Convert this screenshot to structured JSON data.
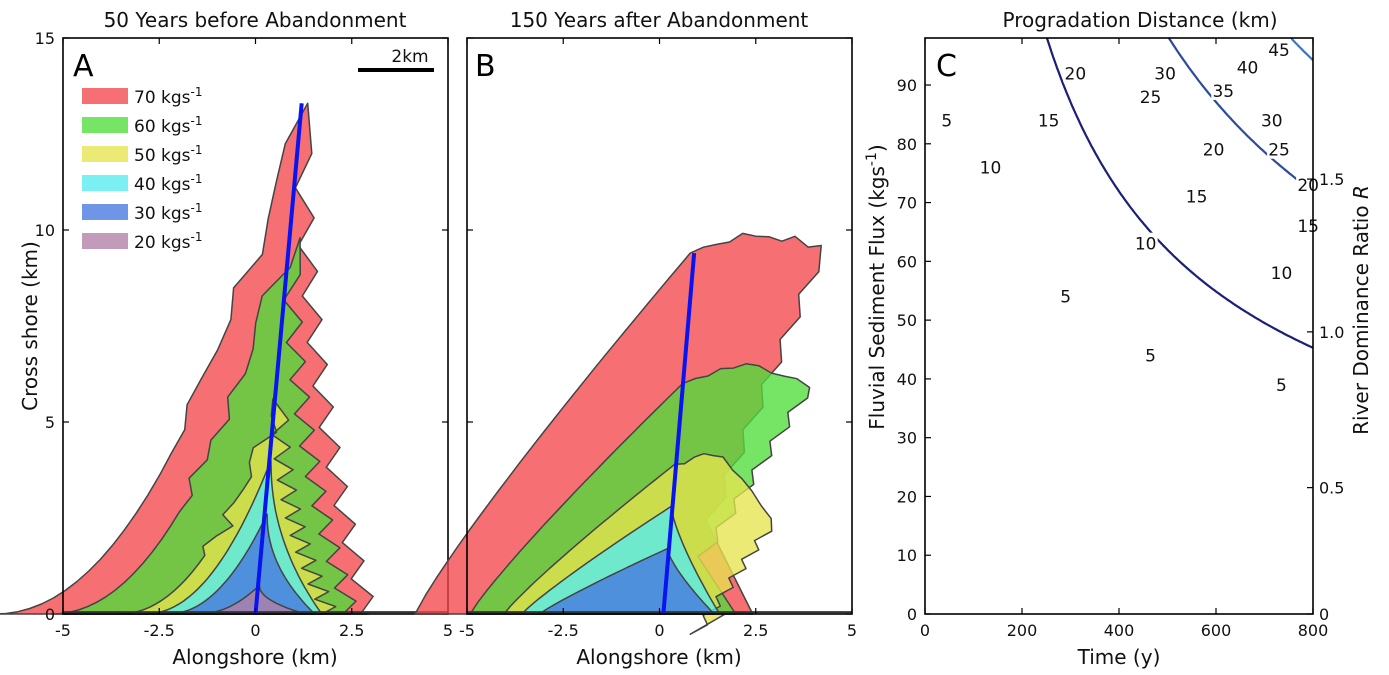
{
  "chart_data": [
    {
      "type": "area",
      "panel": "A",
      "title": "50 Years before Abandonment",
      "xlabel": "Alongshore (km)",
      "ylabel": "Cross shore (km)",
      "xlim": [
        -5,
        5
      ],
      "ylim": [
        0,
        15
      ],
      "x_ticks": [
        "-5",
        "-2.5",
        "0",
        "2.5",
        "5"
      ],
      "y_ticks": [
        "0",
        "5",
        "10",
        "15"
      ],
      "scale_bar": "2km",
      "legend": [
        {
          "label": "70 kgs",
          "sup": "-1",
          "color": "#f4474a"
        },
        {
          "label": "60 kgs",
          "sup": "-1",
          "color": "#4fdc3a"
        },
        {
          "label": "50 kgs",
          "sup": "-1",
          "color": "#e6e44e"
        },
        {
          "label": "40 kgs",
          "sup": "-1",
          "color": "#54ecf0"
        },
        {
          "label": "30 kgs",
          "sup": "-1",
          "color": "#4677e0"
        },
        {
          "label": "20 kgs",
          "sup": "-1",
          "color": "#b27fa6"
        }
      ],
      "series": [
        {
          "flux": 70,
          "tip": [
            1.2,
            13.3
          ],
          "color": "#f4474a"
        },
        {
          "flux": 60,
          "tip": [
            0.9,
            9.8
          ],
          "color": "#4fdc3a"
        },
        {
          "flux": 50,
          "tip": [
            0.6,
            5.6
          ],
          "color": "#e6e44e"
        },
        {
          "flux": 40,
          "tip": [
            0.4,
            4.0
          ],
          "color": "#54ecf0"
        },
        {
          "flux": 30,
          "tip": [
            0.3,
            2.6
          ],
          "color": "#4677e0"
        },
        {
          "flux": 20,
          "tip": [
            0.1,
            0.75
          ],
          "color": "#b27fa6"
        }
      ],
      "axis_line": {
        "from": [
          0.0,
          0.0
        ],
        "to": [
          1.2,
          13.3
        ],
        "color": "#0a14f0"
      }
    },
    {
      "type": "area",
      "panel": "B",
      "title": "150 Years after Abandonment",
      "xlabel": "Alongshore (km)",
      "xlim": [
        -5,
        5
      ],
      "ylim": [
        0,
        15
      ],
      "x_ticks": [
        "-5",
        "-2.5",
        "0",
        "2.5",
        "5"
      ],
      "series": [
        {
          "flux": 70,
          "tip": [
            0.8,
            9.4
          ],
          "hook_end": [
            4.2,
            9.5
          ],
          "color": "#f4474a"
        },
        {
          "flux": 60,
          "tip": [
            0.6,
            6.0
          ],
          "hook_end": [
            3.9,
            6.0
          ],
          "color": "#4fdc3a"
        },
        {
          "flux": 50,
          "tip": [
            0.4,
            3.9
          ],
          "hook_end": [
            2.9,
            2.4
          ],
          "color": "#e6e44e"
        },
        {
          "flux": 40,
          "tip": [
            0.3,
            2.8
          ],
          "color": "#54ecf0"
        },
        {
          "flux": 30,
          "tip": [
            0.2,
            1.7
          ],
          "color": "#4677e0"
        }
      ],
      "axis_line": {
        "from": [
          0.1,
          0.0
        ],
        "to": [
          0.9,
          9.4
        ],
        "color": "#0a14f0"
      }
    },
    {
      "type": "contour",
      "panel": "C",
      "title": "Progradation Distance (km)",
      "xlabel": "Time (y)",
      "ylabel": "Fluvial Sediment Flux (kgs",
      "ylabel_sup": "-1",
      "ylabel_end": ")",
      "y2label": "River Dominance Ratio ",
      "y2label_italic": "R",
      "xlim": [
        0,
        800
      ],
      "ylim": [
        0,
        98
      ],
      "x_ticks": [
        0,
        200,
        400,
        600,
        800
      ],
      "y_ticks": [
        0,
        10,
        20,
        30,
        40,
        50,
        60,
        70,
        80,
        90
      ],
      "y2_ticks": [
        {
          "value": "0",
          "at": 0
        },
        {
          "value": "0.5",
          "at": 21.5
        },
        {
          "value": "1.0",
          "at": 48
        },
        {
          "value": "1.5",
          "at": 74
        }
      ],
      "model": "progradation = 0.0000205 * time * flux^1.5 (km)",
      "levels": [
        {
          "value": 5,
          "color": "#1b1f7a",
          "labels": [
            [
              45,
              84
            ],
            [
              290,
              54
            ],
            [
              465,
              44
            ],
            [
              735,
              39
            ]
          ]
        },
        {
          "value": 10,
          "color": "#2b4aa0",
          "labels": [
            [
              135,
              76
            ],
            [
              455,
              63
            ],
            [
              735,
              58
            ]
          ]
        },
        {
          "value": 15,
          "color": "#3a78c6",
          "labels": [
            [
              255,
              84
            ],
            [
              560,
              71
            ],
            [
              790,
              66
            ]
          ]
        },
        {
          "value": 20,
          "color": "#5bbfd0",
          "labels": [
            [
              310,
              92
            ],
            [
              595,
              79
            ],
            [
              790,
              73
            ]
          ]
        },
        {
          "value": 25,
          "color": "#9fd06a",
          "labels": [
            [
              465,
              88
            ],
            [
              730,
              79
            ]
          ]
        },
        {
          "value": 30,
          "color": "#e7e23a",
          "labels": [
            [
              495,
              92
            ],
            [
              715,
              84
            ]
          ]
        },
        {
          "value": 35,
          "color": "#f2a62f",
          "labels": [
            [
              615,
              89
            ]
          ]
        },
        {
          "value": 40,
          "color": "#ee5a25",
          "labels": [
            [
              665,
              93
            ]
          ]
        },
        {
          "value": 45,
          "color": "#d8232a",
          "labels": [
            [
              730,
              96
            ]
          ]
        }
      ]
    }
  ]
}
